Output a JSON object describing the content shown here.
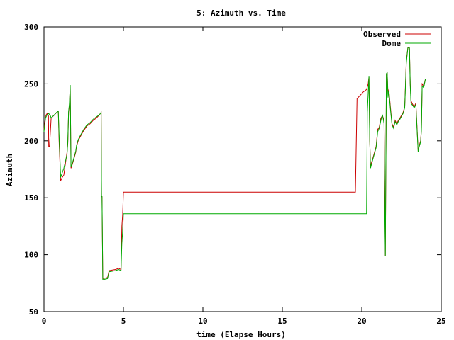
{
  "chart_data": {
    "type": "line",
    "title": "5: Azimuth vs. Time",
    "xlabel": "time (Elapse Hours)",
    "ylabel": "Azimuth",
    "xlim": [
      0,
      25
    ],
    "ylim": [
      50,
      300
    ],
    "xticks": [
      0,
      5,
      10,
      15,
      20,
      25
    ],
    "yticks": [
      50,
      100,
      150,
      200,
      250,
      300
    ],
    "grid": false,
    "legend_position": "top-right",
    "series": [
      {
        "name": "Observed",
        "color": "#cc0000",
        "points": [
          [
            0.0,
            210
          ],
          [
            0.1,
            222
          ],
          [
            0.2,
            224
          ],
          [
            0.28,
            222
          ],
          [
            0.3,
            195
          ],
          [
            0.35,
            195
          ],
          [
            0.4,
            208
          ],
          [
            0.45,
            220
          ],
          [
            0.6,
            222
          ],
          [
            0.8,
            225
          ],
          [
            0.9,
            226
          ],
          [
            0.95,
            200
          ],
          [
            1.05,
            165
          ],
          [
            1.15,
            168
          ],
          [
            1.25,
            170
          ],
          [
            1.35,
            180
          ],
          [
            1.45,
            190
          ],
          [
            1.5,
            198
          ],
          [
            1.55,
            225
          ],
          [
            1.6,
            230
          ],
          [
            1.65,
            249
          ],
          [
            1.7,
            176
          ],
          [
            1.8,
            180
          ],
          [
            1.9,
            185
          ],
          [
            2.0,
            190
          ],
          [
            2.05,
            195
          ],
          [
            2.15,
            200
          ],
          [
            2.3,
            204
          ],
          [
            2.5,
            209
          ],
          [
            2.7,
            213
          ],
          [
            2.9,
            215
          ],
          [
            3.1,
            218
          ],
          [
            3.3,
            220
          ],
          [
            3.5,
            223
          ],
          [
            3.6,
            225
          ],
          [
            3.62,
            151
          ],
          [
            3.65,
            151
          ],
          [
            3.7,
            79
          ],
          [
            4.0,
            80
          ],
          [
            4.1,
            86
          ],
          [
            4.5,
            87
          ],
          [
            4.7,
            88
          ],
          [
            4.85,
            87
          ],
          [
            4.9,
            125
          ],
          [
            4.95,
            135
          ],
          [
            5.0,
            155
          ],
          [
            19.6,
            155
          ],
          [
            19.7,
            237
          ],
          [
            19.9,
            240
          ],
          [
            20.1,
            243
          ],
          [
            20.3,
            245
          ],
          [
            20.4,
            250
          ],
          [
            20.45,
            256
          ],
          [
            20.5,
            200
          ],
          [
            20.55,
            178
          ],
          [
            20.7,
            185
          ],
          [
            20.9,
            195
          ],
          [
            21.0,
            210
          ],
          [
            21.1,
            212
          ],
          [
            21.2,
            220
          ],
          [
            21.3,
            222
          ],
          [
            21.4,
            218
          ],
          [
            21.45,
            150
          ],
          [
            21.48,
            99
          ],
          [
            21.5,
            140
          ],
          [
            21.55,
            258
          ],
          [
            21.6,
            260
          ],
          [
            21.65,
            240
          ],
          [
            21.7,
            245
          ],
          [
            21.8,
            230
          ],
          [
            21.9,
            215
          ],
          [
            22.0,
            212
          ],
          [
            22.1,
            218
          ],
          [
            22.2,
            215
          ],
          [
            22.3,
            218
          ],
          [
            22.4,
            220
          ],
          [
            22.6,
            225
          ],
          [
            22.7,
            230
          ],
          [
            22.8,
            270
          ],
          [
            22.9,
            282
          ],
          [
            23.0,
            281
          ],
          [
            23.05,
            250
          ],
          [
            23.1,
            235
          ],
          [
            23.2,
            232
          ],
          [
            23.3,
            230
          ],
          [
            23.4,
            233
          ],
          [
            23.5,
            205
          ],
          [
            23.55,
            190
          ],
          [
            23.6,
            195
          ],
          [
            23.7,
            200
          ],
          [
            23.75,
            210
          ],
          [
            23.8,
            250
          ],
          [
            23.9,
            248
          ],
          [
            24.0,
            254
          ]
        ]
      },
      {
        "name": "Dome",
        "color": "#00aa00",
        "points": [
          [
            0.0,
            208
          ],
          [
            0.1,
            220
          ],
          [
            0.2,
            223
          ],
          [
            0.3,
            224
          ],
          [
            0.4,
            222
          ],
          [
            0.45,
            220
          ],
          [
            0.6,
            222
          ],
          [
            0.8,
            225
          ],
          [
            0.9,
            226
          ],
          [
            0.95,
            205
          ],
          [
            1.05,
            168
          ],
          [
            1.15,
            172
          ],
          [
            1.25,
            176
          ],
          [
            1.35,
            182
          ],
          [
            1.45,
            188
          ],
          [
            1.5,
            200
          ],
          [
            1.55,
            226
          ],
          [
            1.6,
            232
          ],
          [
            1.65,
            249
          ],
          [
            1.7,
            177
          ],
          [
            1.8,
            181
          ],
          [
            1.9,
            186
          ],
          [
            2.0,
            191
          ],
          [
            2.05,
            196
          ],
          [
            2.15,
            201
          ],
          [
            2.3,
            205
          ],
          [
            2.5,
            210
          ],
          [
            2.7,
            214
          ],
          [
            2.9,
            216
          ],
          [
            3.1,
            219
          ],
          [
            3.3,
            221
          ],
          [
            3.5,
            223
          ],
          [
            3.6,
            225
          ],
          [
            3.62,
            151
          ],
          [
            3.65,
            151
          ],
          [
            3.7,
            78
          ],
          [
            4.0,
            79
          ],
          [
            4.1,
            85
          ],
          [
            4.5,
            86
          ],
          [
            4.7,
            87
          ],
          [
            4.85,
            86
          ],
          [
            4.9,
            110
          ],
          [
            4.95,
            120
          ],
          [
            5.0,
            136
          ],
          [
            20.3,
            136
          ],
          [
            20.35,
            225
          ],
          [
            20.45,
            257
          ],
          [
            20.5,
            200
          ],
          [
            20.55,
            176
          ],
          [
            20.7,
            184
          ],
          [
            20.9,
            194
          ],
          [
            21.0,
            208
          ],
          [
            21.1,
            211
          ],
          [
            21.2,
            218
          ],
          [
            21.3,
            223
          ],
          [
            21.4,
            215
          ],
          [
            21.45,
            130
          ],
          [
            21.48,
            99
          ],
          [
            21.5,
            145
          ],
          [
            21.55,
            259
          ],
          [
            21.6,
            260
          ],
          [
            21.65,
            238
          ],
          [
            21.7,
            244
          ],
          [
            21.8,
            228
          ],
          [
            21.9,
            214
          ],
          [
            22.0,
            211
          ],
          [
            22.1,
            217
          ],
          [
            22.2,
            214
          ],
          [
            22.3,
            217
          ],
          [
            22.4,
            219
          ],
          [
            22.6,
            224
          ],
          [
            22.7,
            229
          ],
          [
            22.8,
            268
          ],
          [
            22.9,
            282
          ],
          [
            23.0,
            282
          ],
          [
            23.05,
            248
          ],
          [
            23.1,
            233
          ],
          [
            23.2,
            231
          ],
          [
            23.3,
            229
          ],
          [
            23.4,
            232
          ],
          [
            23.5,
            203
          ],
          [
            23.55,
            190
          ],
          [
            23.6,
            194
          ],
          [
            23.7,
            199
          ],
          [
            23.75,
            209
          ],
          [
            23.8,
            248
          ],
          [
            23.9,
            247
          ],
          [
            24.0,
            254
          ]
        ]
      }
    ]
  }
}
